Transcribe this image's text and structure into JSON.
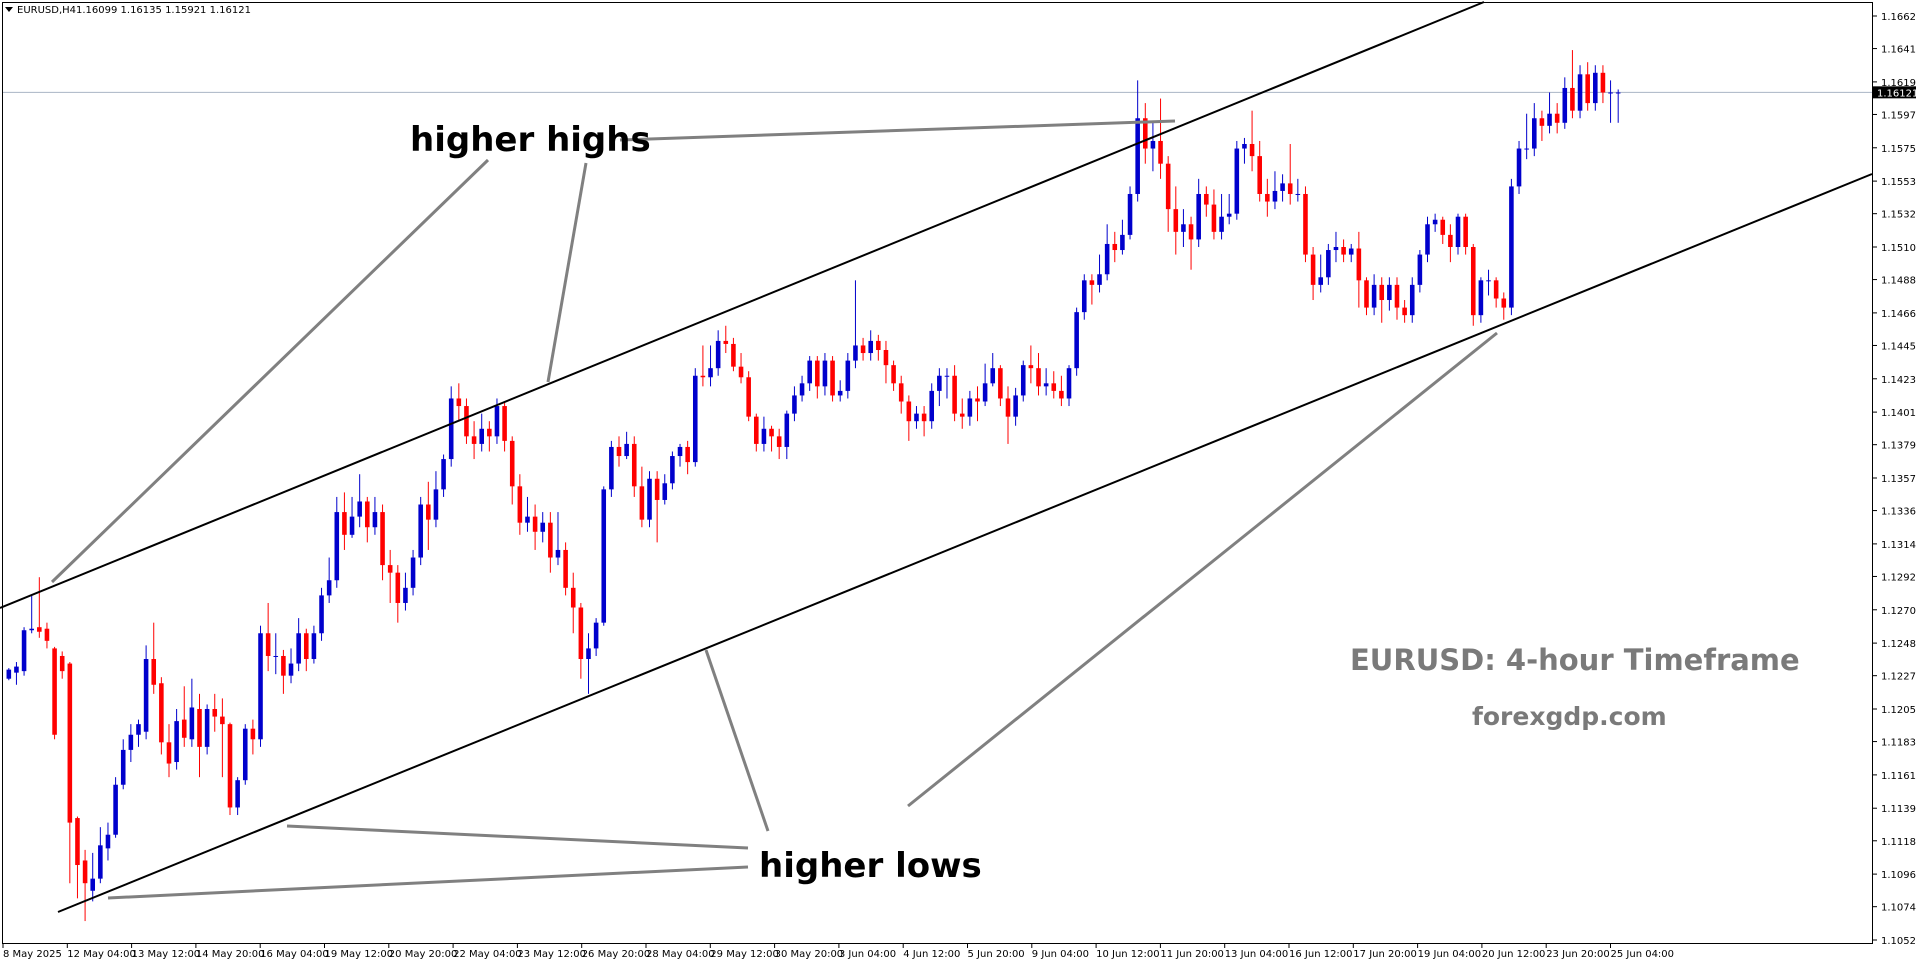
{
  "header": {
    "symbol": "EURUSD,H4",
    "ohlc": "1.16099 1.16135 1.15921 1.16121"
  },
  "current_price_label": "1.16121",
  "watermark": {
    "title": "EURUSD: 4-hour Timeframe",
    "site": "forexgdp.com"
  },
  "annotations": {
    "higher_highs": "higher highs",
    "higher_lows": "higher lows"
  },
  "colors": {
    "bull": "#0000cc",
    "bear": "#ff0000",
    "trendline": "#000000",
    "pointer": "#808080",
    "grid_price_line": "#a9b4c4"
  },
  "chart_data": {
    "type": "candlestick",
    "title": "EURUSD,H4",
    "price_axis_ticks": [
      "1.16625",
      "1.16410",
      "1.16190",
      "1.15975",
      "1.15755",
      "1.15535",
      "1.15320",
      "1.15100",
      "1.14885",
      "1.14665",
      "1.14450",
      "1.14230",
      "1.14010",
      "1.13795",
      "1.13575",
      "1.13360",
      "1.13140",
      "1.12925",
      "1.12705",
      "1.12485",
      "1.12270",
      "1.12050",
      "1.11835",
      "1.11615",
      "1.11395",
      "1.11180",
      "1.10960",
      "1.10745",
      "1.10525"
    ],
    "time_axis_ticks": [
      "8 May 2025",
      "12 May 04:00",
      "13 May 12:00",
      "14 May 20:00",
      "16 May 04:00",
      "19 May 12:00",
      "20 May 20:00",
      "22 May 04:00",
      "23 May 12:00",
      "26 May 20:00",
      "28 May 04:00",
      "29 May 12:00",
      "30 May 20:00",
      "3 Jun 04:00",
      "4 Jun 12:00",
      "5 Jun 20:00",
      "9 Jun 04:00",
      "10 Jun 12:00",
      "11 Jun 20:00",
      "13 Jun 04:00",
      "16 Jun 12:00",
      "17 Jun 20:00",
      "19 Jun 04:00",
      "20 Jun 12:00",
      "23 Jun 20:00",
      "25 Jun 04:00"
    ],
    "ylim": [
      1.10525,
      1.16625
    ],
    "current_price": 1.16121,
    "candles": [
      [
        1.1225,
        1.1231,
        1.1224,
        1.1232
      ],
      [
        1.1229,
        1.1233,
        1.1221,
        1.1236
      ],
      [
        1.123,
        1.1257,
        1.1227,
        1.1259
      ],
      [
        1.1257,
        1.1258,
        1.1255,
        1.128
      ],
      [
        1.1259,
        1.1256,
        1.1252,
        1.1292
      ],
      [
        1.1258,
        1.125,
        1.1245,
        1.1262
      ],
      [
        1.1245,
        1.1188,
        1.1185,
        1.1246
      ],
      [
        1.124,
        1.123,
        1.1225,
        1.1243
      ],
      [
        1.1235,
        1.113,
        1.109,
        1.1236
      ],
      [
        1.1133,
        1.1102,
        1.108,
        1.1134
      ],
      [
        1.1105,
        1.109,
        1.1065,
        1.1112
      ],
      [
        1.1085,
        1.1093,
        1.1078,
        1.111
      ],
      [
        1.1093,
        1.1115,
        1.109,
        1.1127
      ],
      [
        1.1113,
        1.1122,
        1.1105,
        1.113
      ],
      [
        1.1122,
        1.1155,
        1.112,
        1.116
      ],
      [
        1.1155,
        1.1178,
        1.1152,
        1.1185
      ],
      [
        1.1178,
        1.1188,
        1.117,
        1.1195
      ],
      [
        1.1188,
        1.1195,
        1.118,
        1.1198
      ],
      [
        1.119,
        1.1238,
        1.1185,
        1.1247
      ],
      [
        1.1238,
        1.1221,
        1.1215,
        1.1262
      ],
      [
        1.1222,
        1.1183,
        1.1175,
        1.1226
      ],
      [
        1.1183,
        1.1169,
        1.116,
        1.1195
      ],
      [
        1.117,
        1.1197,
        1.1165,
        1.1205
      ],
      [
        1.1198,
        1.1186,
        1.118,
        1.122
      ],
      [
        1.1185,
        1.1206,
        1.118,
        1.1225
      ],
      [
        1.1205,
        1.118,
        1.116,
        1.1215
      ],
      [
        1.118,
        1.1205,
        1.1175,
        1.1208
      ],
      [
        1.1205,
        1.12,
        1.119,
        1.1215
      ],
      [
        1.12,
        1.1195,
        1.116,
        1.1212
      ],
      [
        1.1195,
        1.114,
        1.1135,
        1.1196
      ],
      [
        1.114,
        1.1158,
        1.1135,
        1.116
      ],
      [
        1.1158,
        1.1192,
        1.1155,
        1.1195
      ],
      [
        1.1192,
        1.1185,
        1.1175,
        1.1198
      ],
      [
        1.1185,
        1.1255,
        1.118,
        1.126
      ],
      [
        1.1255,
        1.124,
        1.123,
        1.1275
      ],
      [
        1.124,
        1.124,
        1.1228,
        1.1255
      ],
      [
        1.124,
        1.1227,
        1.1215,
        1.1244
      ],
      [
        1.1227,
        1.1235,
        1.1222,
        1.1245
      ],
      [
        1.1235,
        1.1255,
        1.123,
        1.1265
      ],
      [
        1.1255,
        1.1238,
        1.123,
        1.1258
      ],
      [
        1.1238,
        1.1255,
        1.1235,
        1.126
      ],
      [
        1.1255,
        1.128,
        1.125,
        1.1285
      ],
      [
        1.128,
        1.129,
        1.1275,
        1.1305
      ],
      [
        1.129,
        1.1335,
        1.1285,
        1.1345
      ],
      [
        1.1335,
        1.132,
        1.131,
        1.1348
      ],
      [
        1.132,
        1.1332,
        1.1318,
        1.1345
      ],
      [
        1.1332,
        1.1342,
        1.1325,
        1.136
      ],
      [
        1.1342,
        1.1325,
        1.1315,
        1.1345
      ],
      [
        1.1325,
        1.1335,
        1.132,
        1.1345
      ],
      [
        1.1335,
        1.13,
        1.129,
        1.134
      ],
      [
        1.13,
        1.1295,
        1.1275,
        1.131
      ],
      [
        1.1295,
        1.1275,
        1.1262,
        1.13
      ],
      [
        1.1275,
        1.1285,
        1.127,
        1.1295
      ],
      [
        1.1285,
        1.1305,
        1.128,
        1.131
      ],
      [
        1.1305,
        1.134,
        1.13,
        1.1345
      ],
      [
        1.134,
        1.133,
        1.131,
        1.1355
      ],
      [
        1.133,
        1.135,
        1.1325,
        1.1362
      ],
      [
        1.135,
        1.137,
        1.1345,
        1.1373
      ],
      [
        1.137,
        1.141,
        1.1365,
        1.1418
      ],
      [
        1.141,
        1.1405,
        1.1395,
        1.142
      ],
      [
        1.1405,
        1.1385,
        1.138,
        1.141
      ],
      [
        1.1385,
        1.138,
        1.137,
        1.1395
      ],
      [
        1.138,
        1.139,
        1.1375,
        1.14
      ],
      [
        1.139,
        1.1385,
        1.1375,
        1.1395
      ],
      [
        1.1385,
        1.1405,
        1.138,
        1.141
      ],
      [
        1.1405,
        1.1382,
        1.1375,
        1.1408
      ],
      [
        1.1382,
        1.1352,
        1.134,
        1.1385
      ],
      [
        1.1352,
        1.1328,
        1.132,
        1.136
      ],
      [
        1.1328,
        1.1332,
        1.1322,
        1.1345
      ],
      [
        1.1332,
        1.1322,
        1.131,
        1.134
      ],
      [
        1.1322,
        1.1328,
        1.1315,
        1.1335
      ],
      [
        1.1328,
        1.1305,
        1.1295,
        1.1335
      ],
      [
        1.1305,
        1.131,
        1.13,
        1.1335
      ],
      [
        1.131,
        1.1285,
        1.128,
        1.1315
      ],
      [
        1.1285,
        1.1272,
        1.1255,
        1.1295
      ],
      [
        1.1272,
        1.1238,
        1.1225,
        1.1275
      ],
      [
        1.1238,
        1.1245,
        1.1215,
        1.1255
      ],
      [
        1.1245,
        1.1262,
        1.124,
        1.1265
      ],
      [
        1.1262,
        1.135,
        1.126,
        1.1352
      ],
      [
        1.135,
        1.1378,
        1.1345,
        1.1382
      ],
      [
        1.1378,
        1.1372,
        1.1365,
        1.1385
      ],
      [
        1.1372,
        1.138,
        1.137,
        1.1388
      ],
      [
        1.138,
        1.1352,
        1.1345,
        1.1385
      ],
      [
        1.1352,
        1.133,
        1.1325,
        1.1365
      ],
      [
        1.133,
        1.1357,
        1.1325,
        1.1362
      ],
      [
        1.1357,
        1.1343,
        1.1315,
        1.1362
      ],
      [
        1.1343,
        1.1354,
        1.134,
        1.136
      ],
      [
        1.1354,
        1.1372,
        1.135,
        1.1375
      ],
      [
        1.1372,
        1.1378,
        1.1365,
        1.138
      ],
      [
        1.1378,
        1.1368,
        1.136,
        1.1382
      ],
      [
        1.1368,
        1.1425,
        1.1365,
        1.143
      ],
      [
        1.1425,
        1.1424,
        1.1418,
        1.1445
      ],
      [
        1.1424,
        1.143,
        1.1418,
        1.1445
      ],
      [
        1.143,
        1.1448,
        1.1425,
        1.1455
      ],
      [
        1.1448,
        1.1446,
        1.144,
        1.1458
      ],
      [
        1.1446,
        1.1431,
        1.1428,
        1.145
      ],
      [
        1.1431,
        1.1424,
        1.142,
        1.144
      ],
      [
        1.1424,
        1.1398,
        1.1395,
        1.1428
      ],
      [
        1.1398,
        1.138,
        1.1375,
        1.14
      ],
      [
        1.138,
        1.139,
        1.1375,
        1.1398
      ],
      [
        1.139,
        1.1385,
        1.1375,
        1.1392
      ],
      [
        1.1385,
        1.1378,
        1.137,
        1.139
      ],
      [
        1.1378,
        1.14,
        1.137,
        1.1402
      ],
      [
        1.14,
        1.1412,
        1.1395,
        1.1418
      ],
      [
        1.1412,
        1.142,
        1.1408,
        1.1425
      ],
      [
        1.142,
        1.1435,
        1.1415,
        1.1438
      ],
      [
        1.1435,
        1.1418,
        1.141,
        1.1438
      ],
      [
        1.1418,
        1.1435,
        1.1412,
        1.144
      ],
      [
        1.1435,
        1.1412,
        1.1408,
        1.1438
      ],
      [
        1.1412,
        1.1415,
        1.1408,
        1.1422
      ],
      [
        1.1415,
        1.1435,
        1.141,
        1.144
      ],
      [
        1.1435,
        1.1445,
        1.143,
        1.1488
      ],
      [
        1.1445,
        1.144,
        1.1435,
        1.145
      ],
      [
        1.144,
        1.1448,
        1.1435,
        1.1455
      ],
      [
        1.1448,
        1.1442,
        1.1435,
        1.1452
      ],
      [
        1.1442,
        1.1432,
        1.142,
        1.1448
      ],
      [
        1.1432,
        1.142,
        1.1415,
        1.1435
      ],
      [
        1.142,
        1.1408,
        1.14,
        1.1425
      ],
      [
        1.1408,
        1.1395,
        1.1382,
        1.1412
      ],
      [
        1.1395,
        1.14,
        1.139,
        1.1405
      ],
      [
        1.14,
        1.1395,
        1.1385,
        1.1405
      ],
      [
        1.1395,
        1.1415,
        1.139,
        1.142
      ],
      [
        1.1415,
        1.1425,
        1.1405,
        1.143
      ],
      [
        1.1425,
        1.1425,
        1.141,
        1.143
      ],
      [
        1.1425,
        1.14,
        1.1395,
        1.1432
      ],
      [
        1.14,
        1.1398,
        1.139,
        1.141
      ],
      [
        1.1398,
        1.141,
        1.1392,
        1.1415
      ],
      [
        1.141,
        1.1408,
        1.1395,
        1.1418
      ],
      [
        1.1408,
        1.142,
        1.1405,
        1.1433
      ],
      [
        1.142,
        1.143,
        1.1418,
        1.144
      ],
      [
        1.143,
        1.141,
        1.1405,
        1.1432
      ],
      [
        1.141,
        1.1398,
        1.138,
        1.1418
      ],
      [
        1.1398,
        1.1412,
        1.1392,
        1.1417
      ],
      [
        1.1412,
        1.1432,
        1.1408,
        1.1435
      ],
      [
        1.1432,
        1.143,
        1.142,
        1.1445
      ],
      [
        1.143,
        1.1418,
        1.1412,
        1.144
      ],
      [
        1.1418,
        1.142,
        1.1412,
        1.143
      ],
      [
        1.142,
        1.1415,
        1.141,
        1.1428
      ],
      [
        1.1415,
        1.141,
        1.1405,
        1.1425
      ],
      [
        1.141,
        1.143,
        1.1405,
        1.1432
      ],
      [
        1.143,
        1.1467,
        1.1425,
        1.147
      ],
      [
        1.1467,
        1.1488,
        1.1462,
        1.1492
      ],
      [
        1.1488,
        1.1485,
        1.1472,
        1.1492
      ],
      [
        1.1485,
        1.1492,
        1.148,
        1.1505
      ],
      [
        1.1492,
        1.1512,
        1.1488,
        1.1525
      ],
      [
        1.1512,
        1.1508,
        1.15,
        1.152
      ],
      [
        1.1508,
        1.1518,
        1.1505,
        1.1528
      ],
      [
        1.1518,
        1.1545,
        1.1515,
        1.155
      ],
      [
        1.1545,
        1.1595,
        1.154,
        1.162
      ],
      [
        1.1595,
        1.1575,
        1.1565,
        1.1605
      ],
      [
        1.1575,
        1.158,
        1.156,
        1.1592
      ],
      [
        1.158,
        1.1565,
        1.1555,
        1.1608
      ],
      [
        1.1565,
        1.1535,
        1.152,
        1.157
      ],
      [
        1.1535,
        1.152,
        1.1505,
        1.155
      ],
      [
        1.152,
        1.1525,
        1.151,
        1.1535
      ],
      [
        1.1525,
        1.1515,
        1.1495,
        1.153
      ],
      [
        1.1515,
        1.1545,
        1.151,
        1.1555
      ],
      [
        1.1545,
        1.1538,
        1.153,
        1.155
      ],
      [
        1.1538,
        1.152,
        1.1515,
        1.1548
      ],
      [
        1.152,
        1.153,
        1.1515,
        1.1545
      ],
      [
        1.153,
        1.1532,
        1.1525,
        1.1545
      ],
      [
        1.1532,
        1.1575,
        1.1528,
        1.158
      ],
      [
        1.1575,
        1.1578,
        1.1565,
        1.1582
      ],
      [
        1.1578,
        1.157,
        1.156,
        1.16
      ],
      [
        1.157,
        1.1545,
        1.154,
        1.158
      ],
      [
        1.1545,
        1.154,
        1.153,
        1.1555
      ],
      [
        1.154,
        1.1547,
        1.1535,
        1.156
      ],
      [
        1.1547,
        1.1552,
        1.154,
        1.1558
      ],
      [
        1.1552,
        1.1545,
        1.1538,
        1.1578
      ],
      [
        1.1545,
        1.1545,
        1.154,
        1.1555
      ],
      [
        1.1545,
        1.1505,
        1.15,
        1.155
      ],
      [
        1.1505,
        1.1485,
        1.1475,
        1.151
      ],
      [
        1.1485,
        1.149,
        1.148,
        1.1505
      ],
      [
        1.149,
        1.1508,
        1.1485,
        1.1512
      ],
      [
        1.1508,
        1.151,
        1.15,
        1.152
      ],
      [
        1.151,
        1.1505,
        1.15,
        1.1515
      ],
      [
        1.1505,
        1.1509,
        1.15,
        1.1512
      ],
      [
        1.1509,
        1.1488,
        1.147,
        1.152
      ],
      [
        1.1488,
        1.147,
        1.1465,
        1.149
      ],
      [
        1.147,
        1.1485,
        1.1465,
        1.1492
      ],
      [
        1.1485,
        1.1475,
        1.146,
        1.149
      ],
      [
        1.1475,
        1.1485,
        1.1468,
        1.149
      ],
      [
        1.1485,
        1.147,
        1.1462,
        1.149
      ],
      [
        1.147,
        1.1465,
        1.146,
        1.1475
      ],
      [
        1.1465,
        1.1485,
        1.146,
        1.149
      ],
      [
        1.1485,
        1.1505,
        1.148,
        1.1508
      ],
      [
        1.1505,
        1.1525,
        1.15,
        1.153
      ],
      [
        1.1525,
        1.1528,
        1.152,
        1.1532
      ],
      [
        1.1528,
        1.1518,
        1.1512,
        1.153
      ],
      [
        1.1518,
        1.151,
        1.15,
        1.1525
      ],
      [
        1.151,
        1.153,
        1.1505,
        1.1532
      ],
      [
        1.153,
        1.151,
        1.1505,
        1.1532
      ],
      [
        1.151,
        1.1465,
        1.1458,
        1.1512
      ],
      [
        1.1465,
        1.1488,
        1.146,
        1.149
      ],
      [
        1.1488,
        1.1488,
        1.1478,
        1.1495
      ],
      [
        1.1488,
        1.1476,
        1.147,
        1.149
      ],
      [
        1.1476,
        1.147,
        1.1462,
        1.148
      ],
      [
        1.147,
        1.155,
        1.1465,
        1.1555
      ],
      [
        1.155,
        1.1575,
        1.1545,
        1.158
      ],
      [
        1.1575,
        1.1575,
        1.1568,
        1.1598
      ],
      [
        1.1575,
        1.1595,
        1.157,
        1.1605
      ],
      [
        1.1595,
        1.159,
        1.158,
        1.16
      ],
      [
        1.159,
        1.1598,
        1.1585,
        1.1612
      ],
      [
        1.1598,
        1.1592,
        1.1585,
        1.1605
      ],
      [
        1.1592,
        1.1615,
        1.1588,
        1.1622
      ],
      [
        1.1615,
        1.16,
        1.1595,
        1.164
      ],
      [
        1.16,
        1.1624,
        1.1595,
        1.163
      ],
      [
        1.1624,
        1.1605,
        1.16,
        1.1632
      ],
      [
        1.1605,
        1.1625,
        1.16,
        1.163
      ],
      [
        1.1625,
        1.1612,
        1.1605,
        1.163
      ],
      [
        1.1612,
        1.1612,
        1.1592,
        1.162
      ],
      [
        1.1612,
        1.1612,
        1.1592,
        1.1614
      ]
    ]
  }
}
